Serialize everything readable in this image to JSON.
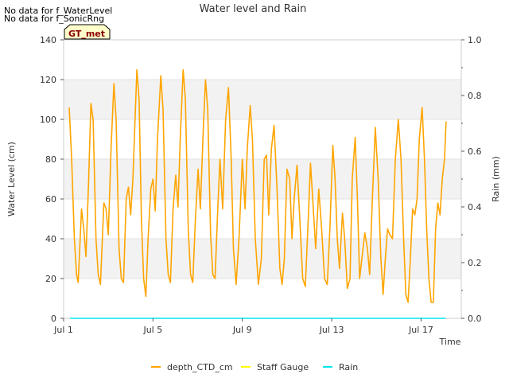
{
  "chart_data": {
    "type": "line",
    "title": "Water level and Rain",
    "xlabel": "Time",
    "ylabel": "Water Level (cm)",
    "y2label": "Rain (mm)",
    "notes": [
      "No data for f_WaterLevel",
      "No data for f_SonicRng"
    ],
    "site_badge": "GT_met",
    "x_ticks": [
      {
        "label": "Jul 1",
        "day": 1
      },
      {
        "label": "Jul 5",
        "day": 5
      },
      {
        "label": "Jul 9",
        "day": 9
      },
      {
        "label": "Jul 13",
        "day": 13
      },
      {
        "label": "Jul 17",
        "day": 17
      }
    ],
    "xlim": [
      1.0,
      18.8
    ],
    "ylim": [
      0,
      140
    ],
    "y_ticks": [
      0,
      20,
      40,
      60,
      80,
      100,
      120,
      140
    ],
    "y2lim": [
      0.0,
      1.0
    ],
    "y2_ticks": [
      "0.0",
      "0.2",
      "0.4",
      "0.6",
      "0.8",
      "1.0"
    ],
    "grid_bands": [
      [
        20,
        40
      ],
      [
        60,
        80
      ],
      [
        100,
        120
      ]
    ],
    "legend": [
      {
        "name": "depth_CTD_cm",
        "color": "#FFA500"
      },
      {
        "name": "Staff Gauge",
        "color": "#FFFF00"
      },
      {
        "name": "Rain",
        "color": "#00E5EE"
      }
    ],
    "series": [
      {
        "name": "depth_CTD_cm",
        "color": "#FFA500",
        "points": [
          [
            1.25,
            106
          ],
          [
            1.36,
            80
          ],
          [
            1.48,
            40
          ],
          [
            1.58,
            22
          ],
          [
            1.65,
            18
          ],
          [
            1.8,
            55
          ],
          [
            1.9,
            45
          ],
          [
            2.0,
            31
          ],
          [
            2.12,
            70
          ],
          [
            2.22,
            108
          ],
          [
            2.32,
            100
          ],
          [
            2.45,
            40
          ],
          [
            2.55,
            22
          ],
          [
            2.65,
            17
          ],
          [
            2.8,
            58
          ],
          [
            2.9,
            55
          ],
          [
            3.0,
            42
          ],
          [
            3.12,
            85
          ],
          [
            3.25,
            118
          ],
          [
            3.35,
            100
          ],
          [
            3.48,
            35
          ],
          [
            3.58,
            20
          ],
          [
            3.68,
            18
          ],
          [
            3.8,
            60
          ],
          [
            3.9,
            66
          ],
          [
            4.0,
            52
          ],
          [
            4.1,
            70
          ],
          [
            4.28,
            125
          ],
          [
            4.38,
            110
          ],
          [
            4.48,
            50
          ],
          [
            4.58,
            20
          ],
          [
            4.68,
            11
          ],
          [
            4.78,
            40
          ],
          [
            4.9,
            65
          ],
          [
            5.0,
            70
          ],
          [
            5.1,
            54
          ],
          [
            5.2,
            90
          ],
          [
            5.35,
            122
          ],
          [
            5.45,
            105
          ],
          [
            5.58,
            40
          ],
          [
            5.68,
            22
          ],
          [
            5.78,
            18
          ],
          [
            5.9,
            55
          ],
          [
            6.02,
            72
          ],
          [
            6.12,
            56
          ],
          [
            6.22,
            90
          ],
          [
            6.35,
            125
          ],
          [
            6.45,
            110
          ],
          [
            6.58,
            45
          ],
          [
            6.68,
            22
          ],
          [
            6.78,
            18
          ],
          [
            6.9,
            50
          ],
          [
            7.02,
            75
          ],
          [
            7.12,
            55
          ],
          [
            7.25,
            95
          ],
          [
            7.35,
            120
          ],
          [
            7.45,
            105
          ],
          [
            7.58,
            42
          ],
          [
            7.68,
            22
          ],
          [
            7.78,
            20
          ],
          [
            7.9,
            55
          ],
          [
            8.0,
            80
          ],
          [
            8.12,
            55
          ],
          [
            8.25,
            100
          ],
          [
            8.38,
            116
          ],
          [
            8.5,
            80
          ],
          [
            8.6,
            35
          ],
          [
            8.72,
            17
          ],
          [
            8.85,
            40
          ],
          [
            9.0,
            80
          ],
          [
            9.12,
            55
          ],
          [
            9.22,
            85
          ],
          [
            9.35,
            107
          ],
          [
            9.45,
            90
          ],
          [
            9.58,
            40
          ],
          [
            9.72,
            17
          ],
          [
            9.85,
            30
          ],
          [
            9.98,
            80
          ],
          [
            10.08,
            82
          ],
          [
            10.18,
            52
          ],
          [
            10.3,
            85
          ],
          [
            10.42,
            97
          ],
          [
            10.55,
            65
          ],
          [
            10.68,
            25
          ],
          [
            10.78,
            17
          ],
          [
            10.88,
            30
          ],
          [
            11.0,
            75
          ],
          [
            11.12,
            70
          ],
          [
            11.22,
            40
          ],
          [
            11.32,
            60
          ],
          [
            11.45,
            77
          ],
          [
            11.58,
            48
          ],
          [
            11.7,
            20
          ],
          [
            11.82,
            16
          ],
          [
            11.95,
            50
          ],
          [
            12.05,
            78
          ],
          [
            12.15,
            60
          ],
          [
            12.28,
            35
          ],
          [
            12.42,
            65
          ],
          [
            12.55,
            45
          ],
          [
            12.68,
            20
          ],
          [
            12.8,
            17
          ],
          [
            12.92,
            45
          ],
          [
            13.05,
            87
          ],
          [
            13.15,
            70
          ],
          [
            13.25,
            40
          ],
          [
            13.35,
            25
          ],
          [
            13.48,
            53
          ],
          [
            13.58,
            40
          ],
          [
            13.7,
            15
          ],
          [
            13.82,
            20
          ],
          [
            13.92,
            70
          ],
          [
            14.05,
            91
          ],
          [
            14.15,
            60
          ],
          [
            14.25,
            20
          ],
          [
            14.35,
            30
          ],
          [
            14.48,
            43
          ],
          [
            14.6,
            35
          ],
          [
            14.7,
            22
          ],
          [
            14.82,
            60
          ],
          [
            14.95,
            96
          ],
          [
            15.08,
            70
          ],
          [
            15.2,
            30
          ],
          [
            15.3,
            12
          ],
          [
            15.4,
            30
          ],
          [
            15.5,
            45
          ],
          [
            15.6,
            42
          ],
          [
            15.72,
            40
          ],
          [
            15.85,
            80
          ],
          [
            15.98,
            100
          ],
          [
            16.1,
            80
          ],
          [
            16.22,
            40
          ],
          [
            16.32,
            12
          ],
          [
            16.42,
            8
          ],
          [
            16.52,
            30
          ],
          [
            16.62,
            55
          ],
          [
            16.72,
            52
          ],
          [
            16.82,
            60
          ],
          [
            16.92,
            90
          ],
          [
            17.05,
            106
          ],
          [
            17.15,
            80
          ],
          [
            17.25,
            45
          ],
          [
            17.35,
            20
          ],
          [
            17.45,
            8
          ],
          [
            17.55,
            8
          ],
          [
            17.65,
            45
          ],
          [
            17.75,
            58
          ],
          [
            17.85,
            52
          ],
          [
            17.95,
            70
          ],
          [
            18.05,
            80
          ],
          [
            18.12,
            99
          ]
        ]
      },
      {
        "name": "Staff Gauge",
        "color": "#FFFF00",
        "points": []
      },
      {
        "name": "Rain",
        "color": "#00E5EE",
        "axis": "y2",
        "points": [
          [
            1.3,
            0.0
          ],
          [
            18.1,
            0.0
          ]
        ]
      }
    ]
  }
}
